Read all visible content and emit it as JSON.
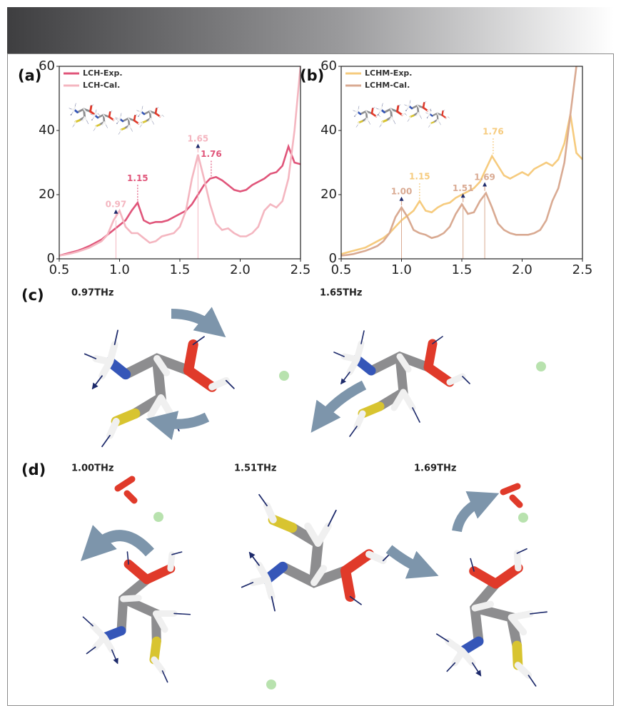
{
  "chart_data": [
    {
      "type": "line",
      "panel_label": "(a)",
      "x": [
        0.5,
        0.55,
        0.6,
        0.65,
        0.7,
        0.75,
        0.8,
        0.85,
        0.9,
        0.95,
        1.0,
        1.05,
        1.1,
        1.15,
        1.2,
        1.25,
        1.3,
        1.35,
        1.4,
        1.45,
        1.5,
        1.55,
        1.6,
        1.65,
        1.7,
        1.75,
        1.8,
        1.85,
        1.9,
        1.95,
        2.0,
        2.05,
        2.1,
        2.15,
        2.2,
        2.25,
        2.3,
        2.35,
        2.4,
        2.45,
        2.5
      ],
      "series": [
        {
          "name": "LCH-Exp.",
          "color": "#e0557a",
          "values": [
            1,
            1.5,
            2,
            2.5,
            3.2,
            4,
            5,
            6,
            7.5,
            9,
            10.5,
            12,
            15,
            17.5,
            12,
            11,
            11.5,
            11.5,
            12,
            13,
            14,
            15,
            17,
            20,
            23,
            25,
            25.5,
            24.5,
            23,
            21.5,
            21,
            21.5,
            23,
            24,
            25,
            26.5,
            27,
            29,
            35,
            30,
            29.5
          ]
        },
        {
          "name": "LCH-Cal.",
          "color": "#f4b6c0",
          "values": [
            1,
            1.3,
            1.7,
            2.2,
            2.8,
            3.5,
            4.5,
            5.5,
            7.5,
            12,
            15,
            10,
            8,
            8,
            6.5,
            5,
            5.5,
            7,
            7.5,
            8,
            10,
            15,
            25,
            32.5,
            25,
            17,
            11,
            9,
            9.5,
            8,
            7,
            7,
            8,
            10,
            15,
            17,
            16,
            18,
            25,
            40,
            60
          ]
        }
      ],
      "annotations": [
        {
          "x": 0.97,
          "series": 1
        },
        {
          "x": 1.15,
          "series": 0
        },
        {
          "x": 1.65,
          "series": 1
        },
        {
          "x": 1.76,
          "series": 0
        }
      ],
      "xlim": [
        0.5,
        2.5
      ],
      "xticks": [
        0.5,
        {
          "value": 1,
          "label": "1.0"
        },
        1.5,
        {
          "value": 2,
          "label": "2.0"
        },
        2.5
      ],
      "ylim": [
        0,
        60
      ],
      "yticks": [
        0,
        20,
        40,
        60
      ],
      "legend": "upper left"
    },
    {
      "type": "line",
      "panel_label": "(b)",
      "x": [
        0.5,
        0.55,
        0.6,
        0.65,
        0.7,
        0.75,
        0.8,
        0.85,
        0.9,
        0.95,
        1.0,
        1.05,
        1.1,
        1.15,
        1.2,
        1.25,
        1.3,
        1.35,
        1.4,
        1.45,
        1.5,
        1.55,
        1.6,
        1.65,
        1.7,
        1.75,
        1.8,
        1.85,
        1.9,
        1.95,
        2.0,
        2.05,
        2.1,
        2.15,
        2.2,
        2.25,
        2.3,
        2.35,
        2.4,
        2.45,
        2.5
      ],
      "series": [
        {
          "name": "LCHM-Exp.",
          "color": "#f6cb7e",
          "values": [
            1.5,
            2,
            2.5,
            3,
            3.5,
            4.5,
            5.5,
            6.5,
            8,
            10,
            12,
            13.5,
            15,
            18,
            15,
            14.5,
            16,
            17,
            17.5,
            19,
            20,
            21,
            22,
            24,
            28,
            32,
            29,
            26,
            25,
            26,
            27,
            26,
            28,
            29,
            30,
            29,
            31,
            36,
            45,
            33,
            31
          ]
        },
        {
          "name": "LCHM-Cal.",
          "color": "#d9aa92",
          "values": [
            1,
            1.2,
            1.5,
            2,
            2.5,
            3.2,
            4,
            5.5,
            8,
            13,
            16,
            13,
            9,
            8,
            7.5,
            6.5,
            7,
            8,
            10,
            14,
            17,
            14,
            14.5,
            18,
            20.5,
            16,
            11,
            9,
            8,
            7.5,
            7.5,
            7.5,
            8,
            9,
            12,
            18,
            22,
            30,
            45,
            60,
            null
          ]
        }
      ],
      "annotations": [
        {
          "x": 1,
          "label": "1.00",
          "series": 1
        },
        {
          "x": 1.15,
          "series": 0
        },
        {
          "x": 1.51,
          "series": 1
        },
        {
          "x": 1.69,
          "series": 1
        },
        {
          "x": 1.76,
          "series": 0
        }
      ],
      "xlim": [
        0.5,
        2.5
      ],
      "xticks": [
        0.5,
        {
          "value": 1,
          "label": "1.0"
        },
        1.5,
        {
          "value": 2,
          "label": "2.0"
        },
        2.5
      ],
      "ylim": [
        0,
        60
      ],
      "yticks": [
        0,
        20,
        40,
        60
      ],
      "legend": "upper left"
    }
  ],
  "panels": [
    {
      "label": "(c)",
      "modes": [
        "0.97THz",
        "1.65THz"
      ]
    },
    {
      "label": "(d)",
      "modes": [
        "1.00THz",
        "1.51THz",
        "1.69THz"
      ]
    }
  ]
}
